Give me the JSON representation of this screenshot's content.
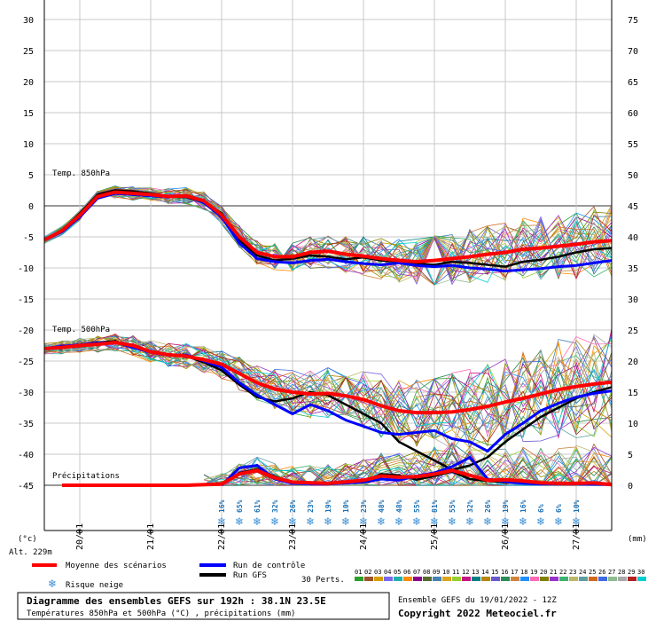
{
  "chart_data": {
    "type": "line",
    "left_axis": {
      "unit": "(°c)",
      "ticks": [
        30,
        25,
        20,
        15,
        10,
        5,
        0,
        -5,
        -10,
        -15,
        -20,
        -25,
        -30,
        -35,
        -40,
        -45
      ],
      "range": [
        -45,
        30
      ]
    },
    "right_axis": {
      "unit": "(mm)",
      "ticks": [
        75,
        70,
        65,
        60,
        55,
        50,
        45,
        40,
        35,
        30,
        25,
        20,
        15,
        10,
        5,
        0
      ],
      "range": [
        0,
        75
      ]
    },
    "altitude": "Alt. 229m",
    "x_axis": {
      "range_hours": [
        0,
        192
      ],
      "date_ticks": [
        {
          "label": "20/01",
          "hour": 12
        },
        {
          "label": "21/01",
          "hour": 36
        },
        {
          "label": "22/01",
          "hour": 60
        },
        {
          "label": "23/01",
          "hour": 84
        },
        {
          "label": "24/01",
          "hour": 108
        },
        {
          "label": "25/01",
          "hour": 132
        },
        {
          "label": "26/01",
          "hour": 156
        },
        {
          "label": "27/01",
          "hour": 180
        }
      ]
    },
    "section_labels": {
      "t850": "Temp. 850hPa",
      "t500": "Temp. 500hPa",
      "precip": "Précipitations"
    },
    "t850_mean": [
      [
        0,
        -5.5
      ],
      [
        6,
        -4
      ],
      [
        12,
        -1.5
      ],
      [
        18,
        1.5
      ],
      [
        24,
        2.2
      ],
      [
        30,
        2.0
      ],
      [
        36,
        1.8
      ],
      [
        42,
        1.5
      ],
      [
        48,
        1.6
      ],
      [
        54,
        0.8
      ],
      [
        60,
        -1.5
      ],
      [
        66,
        -5
      ],
      [
        72,
        -7.5
      ],
      [
        78,
        -8.2
      ],
      [
        84,
        -8.2
      ],
      [
        90,
        -7.5
      ],
      [
        96,
        -7.3
      ],
      [
        102,
        -7.8
      ],
      [
        108,
        -8.1
      ],
      [
        114,
        -8.5
      ],
      [
        120,
        -8.8
      ],
      [
        126,
        -9.0
      ],
      [
        132,
        -8.8
      ],
      [
        138,
        -8.5
      ],
      [
        144,
        -8.2
      ],
      [
        150,
        -7.8
      ],
      [
        156,
        -7.5
      ],
      [
        162,
        -7.0
      ],
      [
        168,
        -6.8
      ],
      [
        174,
        -6.5
      ],
      [
        180,
        -6.2
      ],
      [
        186,
        -5.8
      ],
      [
        192,
        -5.6
      ]
    ],
    "t850_control": [
      [
        0,
        -5.5
      ],
      [
        6,
        -4.2
      ],
      [
        12,
        -1.8
      ],
      [
        18,
        1.2
      ],
      [
        24,
        2.0
      ],
      [
        30,
        1.8
      ],
      [
        36,
        1.6
      ],
      [
        42,
        1.4
      ],
      [
        48,
        1.7
      ],
      [
        54,
        0.5
      ],
      [
        60,
        -1.8
      ],
      [
        66,
        -6
      ],
      [
        72,
        -8.5
      ],
      [
        78,
        -9
      ],
      [
        84,
        -9.2
      ],
      [
        90,
        -8.8
      ],
      [
        96,
        -8.6
      ],
      [
        102,
        -9.0
      ],
      [
        108,
        -9.3
      ],
      [
        114,
        -9.5
      ],
      [
        120,
        -9.2
      ],
      [
        126,
        -9.6
      ],
      [
        132,
        -9.8
      ],
      [
        138,
        -9.6
      ],
      [
        144,
        -10.0
      ],
      [
        150,
        -10.2
      ],
      [
        156,
        -10.5
      ],
      [
        162,
        -10.3
      ],
      [
        168,
        -10.1
      ],
      [
        174,
        -9.8
      ],
      [
        180,
        -9.6
      ],
      [
        186,
        -9.2
      ],
      [
        192,
        -8.8
      ]
    ],
    "t850_gfs": [
      [
        0,
        -5.5
      ],
      [
        6,
        -4
      ],
      [
        12,
        -1.2
      ],
      [
        18,
        1.8
      ],
      [
        24,
        2.5
      ],
      [
        30,
        2.3
      ],
      [
        36,
        2.0
      ],
      [
        42,
        1.5
      ],
      [
        48,
        1.4
      ],
      [
        54,
        0.6
      ],
      [
        60,
        -1.2
      ],
      [
        66,
        -5.5
      ],
      [
        72,
        -8
      ],
      [
        78,
        -8.8
      ],
      [
        84,
        -8.5
      ],
      [
        90,
        -8.0
      ],
      [
        96,
        -8.2
      ],
      [
        102,
        -8.6
      ],
      [
        108,
        -8.3
      ],
      [
        114,
        -8.8
      ],
      [
        120,
        -9.0
      ],
      [
        126,
        -9.3
      ],
      [
        132,
        -9.5
      ],
      [
        138,
        -9.0
      ],
      [
        144,
        -9.2
      ],
      [
        150,
        -9.5
      ],
      [
        156,
        -9.8
      ],
      [
        162,
        -9.0
      ],
      [
        168,
        -8.7
      ],
      [
        174,
        -8.2
      ],
      [
        180,
        -7.5
      ],
      [
        186,
        -7.0
      ],
      [
        192,
        -6.8
      ]
    ],
    "t500_mean": [
      [
        0,
        -23
      ],
      [
        6,
        -22.8
      ],
      [
        12,
        -22.5
      ],
      [
        18,
        -22.3
      ],
      [
        24,
        -22
      ],
      [
        30,
        -22.5
      ],
      [
        36,
        -23.5
      ],
      [
        42,
        -24
      ],
      [
        48,
        -24.2
      ],
      [
        54,
        -24.8
      ],
      [
        60,
        -25.5
      ],
      [
        66,
        -27
      ],
      [
        72,
        -28.5
      ],
      [
        78,
        -29.5
      ],
      [
        84,
        -30.0
      ],
      [
        90,
        -30.3
      ],
      [
        96,
        -30.2
      ],
      [
        102,
        -30.6
      ],
      [
        108,
        -31.2
      ],
      [
        114,
        -32.2
      ],
      [
        120,
        -33.0
      ],
      [
        126,
        -33.3
      ],
      [
        132,
        -33.3
      ],
      [
        138,
        -33.2
      ],
      [
        144,
        -32.8
      ],
      [
        150,
        -32.3
      ],
      [
        156,
        -31.6
      ],
      [
        162,
        -31.0
      ],
      [
        168,
        -30.3
      ],
      [
        174,
        -29.6
      ],
      [
        180,
        -29.1
      ],
      [
        186,
        -28.7
      ],
      [
        192,
        -28.4
      ]
    ],
    "t500_control": [
      [
        0,
        -23
      ],
      [
        6,
        -22.6
      ],
      [
        12,
        -22.4
      ],
      [
        18,
        -22.1
      ],
      [
        24,
        -22
      ],
      [
        30,
        -22.8
      ],
      [
        36,
        -23.6
      ],
      [
        42,
        -24.1
      ],
      [
        48,
        -24
      ],
      [
        54,
        -25
      ],
      [
        60,
        -26
      ],
      [
        66,
        -28.5
      ],
      [
        72,
        -30.5
      ],
      [
        78,
        -32
      ],
      [
        84,
        -33.5
      ],
      [
        90,
        -32
      ],
      [
        96,
        -33
      ],
      [
        102,
        -34.5
      ],
      [
        108,
        -35.5
      ],
      [
        114,
        -36.5
      ],
      [
        120,
        -36.8
      ],
      [
        126,
        -36.5
      ],
      [
        132,
        -36.2
      ],
      [
        138,
        -37.5
      ],
      [
        144,
        -38.0
      ],
      [
        150,
        -39.5
      ],
      [
        156,
        -36.8
      ],
      [
        162,
        -35.0
      ],
      [
        168,
        -33.0
      ],
      [
        174,
        -31.8
      ],
      [
        180,
        -30.8
      ],
      [
        186,
        -30.2
      ],
      [
        192,
        -29.8
      ]
    ],
    "t500_gfs": [
      [
        0,
        -23
      ],
      [
        6,
        -22.7
      ],
      [
        12,
        -22.4
      ],
      [
        18,
        -22.0
      ],
      [
        24,
        -21.8
      ],
      [
        30,
        -22.6
      ],
      [
        36,
        -23.4
      ],
      [
        42,
        -23.9
      ],
      [
        48,
        -24.2
      ],
      [
        54,
        -25.2
      ],
      [
        60,
        -26.5
      ],
      [
        66,
        -28.8
      ],
      [
        72,
        -30.8
      ],
      [
        78,
        -31.5
      ],
      [
        84,
        -31.0
      ],
      [
        90,
        -30.0
      ],
      [
        96,
        -30.5
      ],
      [
        102,
        -32
      ],
      [
        108,
        -33.5
      ],
      [
        114,
        -35.0
      ],
      [
        120,
        -38.0
      ],
      [
        126,
        -39.5
      ],
      [
        132,
        -41.0
      ],
      [
        138,
        -42.5
      ],
      [
        144,
        -41.8
      ],
      [
        150,
        -40.5
      ],
      [
        156,
        -38.0
      ],
      [
        162,
        -36.0
      ],
      [
        168,
        -34.0
      ],
      [
        174,
        -32.5
      ],
      [
        180,
        -31.0
      ],
      [
        186,
        -30.0
      ],
      [
        192,
        -29.2
      ]
    ],
    "precip_mean": [
      [
        6,
        0
      ],
      [
        24,
        0
      ],
      [
        48,
        0
      ],
      [
        60,
        0.2
      ],
      [
        66,
        1.8
      ],
      [
        72,
        2.4
      ],
      [
        78,
        1.2
      ],
      [
        84,
        0.5
      ],
      [
        96,
        0.3
      ],
      [
        108,
        0.8
      ],
      [
        114,
        1.5
      ],
      [
        120,
        1.3
      ],
      [
        126,
        1.4
      ],
      [
        132,
        1.8
      ],
      [
        138,
        2.4
      ],
      [
        144,
        1.6
      ],
      [
        150,
        0.8
      ],
      [
        156,
        0.9
      ],
      [
        162,
        0.7
      ],
      [
        168,
        0.4
      ],
      [
        174,
        0.3
      ],
      [
        180,
        0.3
      ],
      [
        186,
        0.4
      ],
      [
        192,
        0.1
      ]
    ],
    "precip_control": [
      [
        60,
        0
      ],
      [
        66,
        2.8
      ],
      [
        72,
        3.2
      ],
      [
        78,
        1.0
      ],
      [
        84,
        0.3
      ],
      [
        96,
        0.2
      ],
      [
        108,
        0.5
      ],
      [
        114,
        1.0
      ],
      [
        120,
        0.8
      ],
      [
        126,
        1.5
      ],
      [
        132,
        2.0
      ],
      [
        138,
        3.0
      ],
      [
        144,
        4.5
      ],
      [
        150,
        1.0
      ],
      [
        156,
        0.6
      ],
      [
        162,
        0.3
      ],
      [
        168,
        0.2
      ],
      [
        180,
        0.2
      ],
      [
        192,
        0.1
      ]
    ],
    "precip_gfs": [
      [
        60,
        0
      ],
      [
        66,
        2.0
      ],
      [
        72,
        2.6
      ],
      [
        78,
        1.4
      ],
      [
        84,
        0.4
      ],
      [
        96,
        0.2
      ],
      [
        108,
        0.6
      ],
      [
        114,
        1.8
      ],
      [
        120,
        1.6
      ],
      [
        126,
        0.9
      ],
      [
        132,
        1.5
      ],
      [
        138,
        2.2
      ],
      [
        144,
        1.0
      ],
      [
        150,
        0.7
      ],
      [
        156,
        0.5
      ],
      [
        168,
        0.3
      ],
      [
        180,
        0.4
      ],
      [
        192,
        0.1
      ]
    ],
    "snow_risk": [
      {
        "hour": 60,
        "pct": "16%"
      },
      {
        "hour": 66,
        "pct": "65%"
      },
      {
        "hour": 72,
        "pct": "61%"
      },
      {
        "hour": 78,
        "pct": "32%"
      },
      {
        "hour": 84,
        "pct": "26%"
      },
      {
        "hour": 90,
        "pct": "23%"
      },
      {
        "hour": 96,
        "pct": "19%"
      },
      {
        "hour": 102,
        "pct": "10%"
      },
      {
        "hour": 108,
        "pct": "23%"
      },
      {
        "hour": 114,
        "pct": "48%"
      },
      {
        "hour": 120,
        "pct": "48%"
      },
      {
        "hour": 126,
        "pct": "55%"
      },
      {
        "hour": 132,
        "pct": "81%"
      },
      {
        "hour": 138,
        "pct": "55%"
      },
      {
        "hour": 144,
        "pct": "32%"
      },
      {
        "hour": 150,
        "pct": "26%"
      },
      {
        "hour": 156,
        "pct": "19%"
      },
      {
        "hour": 162,
        "pct": "16%"
      },
      {
        "hour": 168,
        "pct": "6%"
      },
      {
        "hour": 174,
        "pct": "6%"
      },
      {
        "hour": 180,
        "pct": "10%"
      }
    ],
    "colors": {
      "mean": "#ff0000",
      "control": "#0000ff",
      "gfs": "#000000",
      "snow": "#3a8fd6",
      "members": [
        "#2aa02a",
        "#a0522d",
        "#d4a000",
        "#7b68ee",
        "#20b2aa",
        "#ff8c00",
        "#8b008b",
        "#556b2f",
        "#4682b4",
        "#daa520",
        "#9acd32",
        "#c71585",
        "#008080",
        "#b8860b",
        "#6a5acd",
        "#2e8b57",
        "#cd853f",
        "#1e90ff",
        "#ff69b4",
        "#808000",
        "#9932cc",
        "#3cb371",
        "#bdb76b",
        "#5f9ea0",
        "#d2691e",
        "#4169e1",
        "#8fbc8f",
        "#a9a9a9",
        "#b22222",
        "#00ced1"
      ]
    }
  },
  "legend": {
    "mean": "Moyenne des scénarios",
    "control": "Run de contrôle",
    "gfs": "Run GFS",
    "snow": "Risque neige",
    "perts_label": "30 Perts.",
    "perts_numbers": [
      "01",
      "02",
      "03",
      "04",
      "05",
      "06",
      "07",
      "08",
      "09",
      "10",
      "11",
      "12",
      "13",
      "14",
      "15",
      "16",
      "17",
      "18",
      "19",
      "20",
      "21",
      "22",
      "23",
      "24",
      "25",
      "26",
      "27",
      "28",
      "29",
      "30"
    ]
  },
  "footer": {
    "title": "Diagramme des ensembles GEFS sur 192h : 38.1N 23.5E",
    "subtitle": "Températures 850hPa et 500hPa (°C) , précipitations (mm)",
    "run": "Ensemble GEFS du 19/01/2022 - 12Z",
    "copyright": "Copyright 2022 Meteociel.fr"
  }
}
